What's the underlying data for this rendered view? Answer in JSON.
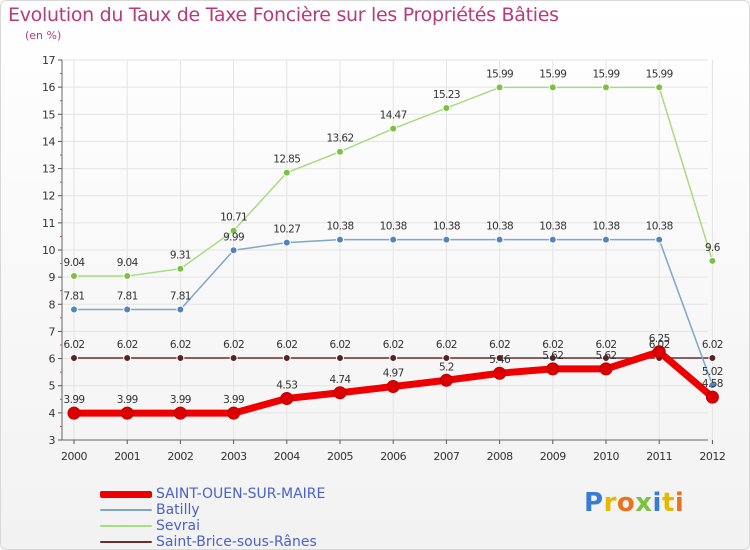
{
  "title": "Evolution du Taux de Taxe Foncière sur les Propriétés Bâties",
  "subtitle": "(en %)",
  "logo": {
    "text": "Proxiti",
    "letters": [
      {
        "ch": "P",
        "color": "#3a7bd5"
      },
      {
        "ch": "r",
        "color": "#e6b800"
      },
      {
        "ch": "o",
        "color": "#e8731c"
      },
      {
        "ch": "x",
        "color": "#7cc242"
      },
      {
        "ch": "i",
        "color": "#3a7bd5"
      },
      {
        "ch": "t",
        "color": "#e6b800"
      },
      {
        "ch": "i",
        "color": "#e8731c"
      }
    ]
  },
  "chart_data": {
    "type": "line",
    "x": [
      "2000",
      "2001",
      "2002",
      "2003",
      "2004",
      "2005",
      "2006",
      "2007",
      "2008",
      "2009",
      "2010",
      "2011",
      "2012"
    ],
    "ylim": [
      3,
      17
    ],
    "yticks": [
      "3",
      "4",
      "5",
      "6",
      "7",
      "8",
      "9",
      "10",
      "11",
      "12",
      "13",
      "14",
      "15",
      "16",
      "17"
    ],
    "grid": true,
    "legend_position": "bottom-left",
    "series": [
      {
        "name": "Saint-Brice-sous-Rânes",
        "color": "#6b2e2e",
        "point_color": "#5a2222",
        "line_width": 1.5,
        "values": [
          6.02,
          6.02,
          6.02,
          6.02,
          6.02,
          6.02,
          6.02,
          6.02,
          6.02,
          6.02,
          6.02,
          6.02,
          6.02
        ],
        "labels": [
          "6.02",
          "6.02",
          "6.02",
          "6.02",
          "6.02",
          "6.02",
          "6.02",
          "6.02",
          "6.02",
          "6.02",
          "6.02",
          "6.02",
          "6.02"
        ]
      },
      {
        "name": "Batilly",
        "color": "#7fa6cc",
        "point_color": "#4f86bf",
        "line_width": 1.5,
        "values": [
          7.81,
          7.81,
          7.81,
          9.99,
          10.27,
          10.38,
          10.38,
          10.38,
          10.38,
          10.38,
          10.38,
          10.38,
          5.02
        ],
        "labels": [
          "7.81",
          "7.81",
          "7.81",
          "9.99",
          "10.27",
          "10.38",
          "10.38",
          "10.38",
          "10.38",
          "10.38",
          "10.38",
          "10.38",
          "5.02"
        ]
      },
      {
        "name": "Sevrai",
        "color": "#a8dc80",
        "point_color": "#7cc242",
        "line_width": 1.5,
        "values": [
          9.04,
          9.04,
          9.31,
          10.71,
          12.85,
          13.62,
          14.47,
          15.23,
          15.99,
          15.99,
          15.99,
          15.99,
          9.6
        ],
        "labels": [
          "9.04",
          "9.04",
          "9.31",
          "10.71",
          "12.85",
          "13.62",
          "14.47",
          "15.23",
          "15.99",
          "15.99",
          "15.99",
          "15.99",
          "9.6"
        ]
      },
      {
        "name": "SAINT-OUEN-SUR-MAIRE",
        "color": "#ee0000",
        "point_color": "#dd0000",
        "line_width": 7,
        "values": [
          3.99,
          3.99,
          3.99,
          3.99,
          4.53,
          4.74,
          4.97,
          5.2,
          5.46,
          5.62,
          5.62,
          6.25,
          4.58
        ],
        "labels": [
          "3.99",
          "3.99",
          "3.99",
          "3.99",
          "4.53",
          "4.74",
          "4.97",
          "5.2",
          "5.46",
          "5.62",
          "5.62",
          "6.25",
          "4.58"
        ]
      }
    ],
    "legend": [
      {
        "label": "SAINT-OUEN-SUR-MAIRE",
        "color": "#ee0000",
        "thickness": 7
      },
      {
        "label": "Batilly",
        "color": "#7fa6cc",
        "thickness": 2
      },
      {
        "label": "Sevrai",
        "color": "#a8dc80",
        "thickness": 2
      },
      {
        "label": "Saint-Brice-sous-Rânes",
        "color": "#6b2e2e",
        "thickness": 2
      }
    ]
  }
}
